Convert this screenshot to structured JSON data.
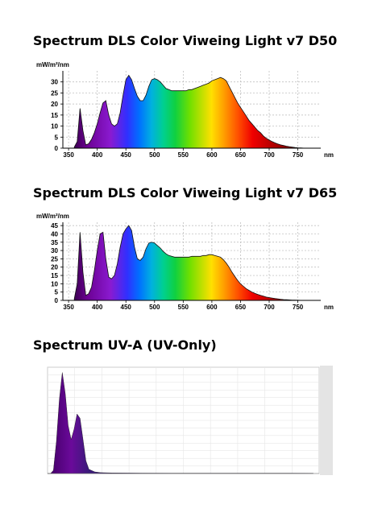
{
  "titles": {
    "d50": "Spectrum DLS Color Viweing Light v7 D50",
    "d65": "Spectrum DLS Color Viweing Light v7 D65",
    "uva": "Spectrum UV-A (UV-Only)"
  },
  "chart_data": [
    {
      "type": "area",
      "title": "Spectrum DLS Color Viweing Light v7 D50",
      "ylabel": "mW/m²/nm",
      "xlabel": "nm",
      "xlim": [
        340,
        790
      ],
      "ylim": [
        0,
        35
      ],
      "xticks": [
        350,
        400,
        450,
        500,
        550,
        600,
        650,
        700,
        750
      ],
      "yticks": [
        0,
        5,
        10,
        15,
        20,
        25,
        30
      ],
      "grid": true,
      "fill": "visible-spectrum rainbow",
      "x": [
        360,
        365,
        370,
        375,
        380,
        385,
        390,
        395,
        400,
        405,
        410,
        415,
        420,
        425,
        430,
        435,
        440,
        445,
        450,
        455,
        460,
        465,
        470,
        475,
        480,
        485,
        490,
        495,
        500,
        505,
        510,
        515,
        520,
        525,
        530,
        535,
        540,
        545,
        550,
        555,
        560,
        565,
        570,
        575,
        580,
        585,
        590,
        595,
        600,
        605,
        610,
        615,
        620,
        625,
        630,
        635,
        640,
        645,
        650,
        655,
        660,
        665,
        670,
        675,
        680,
        685,
        690,
        695,
        700,
        705,
        710,
        715,
        720,
        725,
        730,
        735,
        740,
        745,
        750,
        755,
        760,
        765,
        770,
        775
      ],
      "y": [
        0.5,
        3,
        18,
        8,
        1.5,
        2,
        4,
        7,
        11,
        16,
        20.5,
        21.5,
        15,
        11,
        10,
        11,
        16,
        24,
        31,
        33,
        31,
        27,
        23.5,
        21.5,
        21.5,
        24,
        28,
        31,
        31.5,
        31,
        30,
        28.5,
        27,
        26.5,
        26,
        26,
        26,
        26,
        26,
        26,
        26.5,
        26.5,
        27,
        27.5,
        28,
        28.5,
        29,
        29.5,
        30.5,
        31,
        31.5,
        32,
        31.5,
        30.5,
        28,
        25.5,
        23,
        20.5,
        18.5,
        16.5,
        14.5,
        12.5,
        11,
        9.5,
        8,
        7,
        5.5,
        4.5,
        3.7,
        3,
        2.4,
        1.9,
        1.5,
        1.2,
        0.9,
        0.7,
        0.5,
        0.3,
        0.2,
        0.1,
        0.05,
        0,
        0,
        0
      ]
    },
    {
      "type": "area",
      "title": "Spectrum DLS Color Viweing Light v7 D65",
      "ylabel": "mW/m²/nm",
      "xlabel": "nm",
      "xlim": [
        340,
        790
      ],
      "ylim": [
        0,
        47
      ],
      "xticks": [
        350,
        400,
        450,
        500,
        550,
        600,
        650,
        700,
        750
      ],
      "yticks": [
        0,
        5,
        10,
        15,
        20,
        25,
        30,
        35,
        40,
        45
      ],
      "grid": true,
      "fill": "visible-spectrum rainbow",
      "x": [
        360,
        365,
        370,
        375,
        380,
        385,
        390,
        395,
        400,
        405,
        410,
        415,
        420,
        425,
        430,
        435,
        440,
        445,
        450,
        455,
        460,
        465,
        470,
        475,
        480,
        485,
        490,
        495,
        500,
        505,
        510,
        515,
        520,
        525,
        530,
        535,
        540,
        545,
        550,
        555,
        560,
        565,
        570,
        575,
        580,
        585,
        590,
        595,
        600,
        605,
        610,
        615,
        620,
        625,
        630,
        635,
        640,
        645,
        650,
        655,
        660,
        665,
        670,
        675,
        680,
        685,
        690,
        695,
        700,
        705,
        710,
        715,
        720,
        725,
        730,
        735,
        740,
        745,
        750,
        755,
        760,
        765,
        770,
        775
      ],
      "y": [
        1,
        10,
        41,
        17,
        3,
        4,
        8,
        18,
        30,
        40,
        41,
        25,
        14,
        13,
        15,
        22,
        32,
        40,
        43,
        45,
        42,
        32,
        25,
        24,
        26,
        31,
        34.5,
        35,
        34.5,
        33,
        31.5,
        29.5,
        28,
        27,
        26.5,
        26,
        26,
        26,
        26,
        26,
        26,
        26.5,
        26.5,
        26.5,
        26.5,
        27,
        27,
        27.5,
        27.5,
        27,
        26.5,
        26,
        24.5,
        22.5,
        20,
        17,
        14.5,
        12,
        10,
        8.5,
        7,
        6,
        5,
        4.2,
        3.6,
        3,
        2.5,
        2,
        1.7,
        1.4,
        1.1,
        0.9,
        0.7,
        0.5,
        0.4,
        0.3,
        0.2,
        0.15,
        0.1,
        0.05,
        0,
        0,
        0,
        0
      ]
    },
    {
      "type": "area",
      "title": "Spectrum UV-A (UV-Only)",
      "xlim": [
        340,
        800
      ],
      "ylim": [
        0,
        1
      ],
      "grid": true,
      "fill": "purple",
      "x": [
        340,
        345,
        350,
        355,
        360,
        365,
        370,
        375,
        380,
        385,
        390,
        395,
        400,
        405,
        410,
        420,
        430,
        450,
        500,
        550,
        600,
        650,
        700,
        750,
        790
      ],
      "y": [
        0,
        0,
        0.03,
        0.3,
        0.7,
        0.95,
        0.75,
        0.45,
        0.32,
        0.42,
        0.56,
        0.52,
        0.32,
        0.12,
        0.04,
        0.015,
        0.008,
        0.005,
        0.004,
        0.003,
        0.003,
        0.003,
        0.003,
        0.003,
        0.002
      ]
    }
  ]
}
